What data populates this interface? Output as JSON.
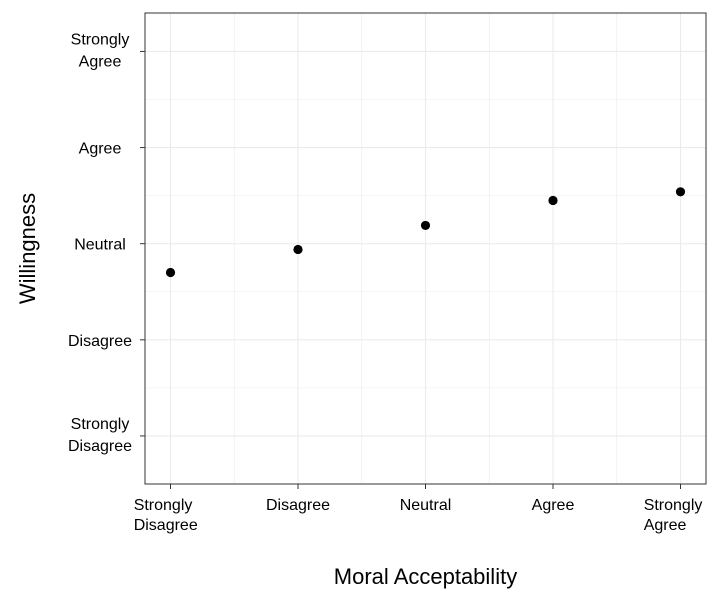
{
  "chart_data": {
    "type": "scatter",
    "xlabel": "Moral Acceptability",
    "ylabel": "Willingness",
    "x_categories": [
      [
        "Strongly",
        "Disagree"
      ],
      [
        "Disagree"
      ],
      [
        "Neutral"
      ],
      [
        "Agree"
      ],
      [
        "Strongly",
        "Agree"
      ]
    ],
    "y_categories": [
      [
        "Strongly",
        "Disagree"
      ],
      [
        "Disagree"
      ],
      [
        "Neutral"
      ],
      [
        "Agree"
      ],
      [
        "Strongly",
        "Agree"
      ]
    ],
    "xlim": [
      0.8,
      5.2
    ],
    "ylim": [
      0.5,
      5.4
    ],
    "grid": true,
    "points": [
      {
        "x": 1,
        "y": 2.7
      },
      {
        "x": 2,
        "y": 2.94
      },
      {
        "x": 3,
        "y": 3.19
      },
      {
        "x": 4,
        "y": 3.45
      },
      {
        "x": 5,
        "y": 3.54
      }
    ],
    "colors": {
      "point": "#000000",
      "grid": "#ebebeb",
      "panel_border": "#333333"
    }
  }
}
